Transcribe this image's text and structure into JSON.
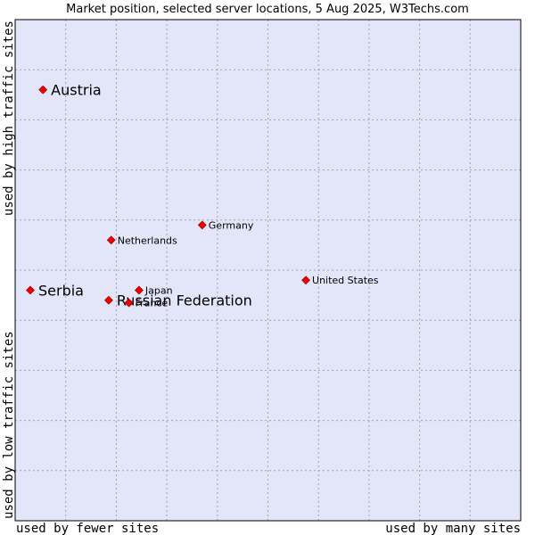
{
  "chart_data": {
    "type": "scatter",
    "title": "Market position, selected server locations, 5 Aug 2025, W3Techs.com",
    "x_axis": {
      "low_label": "used by fewer sites",
      "high_label": "used by many sites",
      "range": [
        0,
        10
      ]
    },
    "y_axis": {
      "low_label": "used by low traffic sites",
      "high_label": "used by high traffic sites",
      "range": [
        0,
        10
      ]
    },
    "colors": {
      "background": "#e3e5f8",
      "grid": "#a0a0b8",
      "point": "#ee0000"
    },
    "points": [
      {
        "label": "Austria",
        "x": 0.55,
        "y": 8.6,
        "emphasis": "large"
      },
      {
        "label": "Germany",
        "x": 3.7,
        "y": 5.9,
        "emphasis": "small"
      },
      {
        "label": "Netherlands",
        "x": 1.9,
        "y": 5.6,
        "emphasis": "small"
      },
      {
        "label": "United States",
        "x": 5.75,
        "y": 4.8,
        "emphasis": "small"
      },
      {
        "label": "Serbia",
        "x": 0.3,
        "y": 4.6,
        "emphasis": "large"
      },
      {
        "label": "Japan",
        "x": 2.45,
        "y": 4.6,
        "emphasis": "small"
      },
      {
        "label": "Russian Federation",
        "x": 1.85,
        "y": 4.4,
        "emphasis": "large"
      },
      {
        "label": "France",
        "x": 2.25,
        "y": 4.35,
        "emphasis": "small"
      }
    ]
  }
}
